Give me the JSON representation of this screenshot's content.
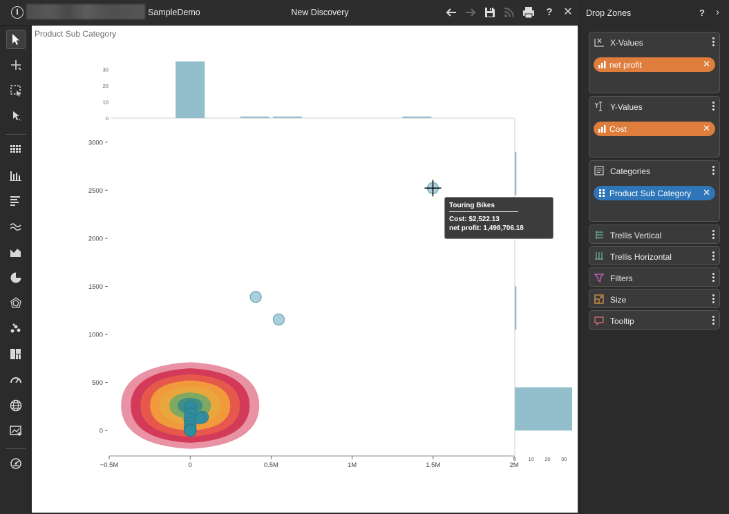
{
  "window": {
    "app_name": "SampleDemo",
    "doc_title": "New Discovery",
    "toolbar_icons": [
      "back-arrow-icon",
      "forward-arrow-icon",
      "save-icon",
      "rss-icon",
      "print-icon",
      "help-icon",
      "close-icon"
    ],
    "help_glyph": "?",
    "close_glyph": "✕"
  },
  "left_toolbar": {
    "tools": [
      "pointer-icon",
      "crosshair-icon",
      "rectangle-select-icon",
      "lasso-select-icon"
    ],
    "chart_types": [
      "grid-table-icon",
      "column-chart-icon",
      "bar-chart-icon",
      "line-chart-icon",
      "area-chart-icon",
      "pie-chart-icon",
      "radar-chart-icon",
      "scatter-chart-icon",
      "treemap-icon",
      "gauge-icon",
      "map-globe-icon",
      "custom-visual-icon"
    ],
    "bottom": [
      "chart-settings-icon"
    ]
  },
  "chart": {
    "title": "Product Sub Category",
    "tooltip": {
      "title": "Touring Bikes",
      "line1": "Cost: $2,522.13",
      "line2": "net profit: 1,498,706.18"
    }
  },
  "chart_data": {
    "type": "scatter",
    "title": "Product Sub Category",
    "xlabel": "",
    "ylabel": "",
    "x_ticks": [
      "−0.5M",
      "0",
      "0.5M",
      "1M",
      "1.5M",
      "2M"
    ],
    "y_ticks": [
      "0",
      "500",
      "1000",
      "1500",
      "2000",
      "2500",
      "3000"
    ],
    "xlim": [
      -500000,
      2000000
    ],
    "ylim": [
      -250,
      3250
    ],
    "points": [
      {
        "x": 1498706.18,
        "y": 2522.13,
        "label": "Touring Bikes",
        "highlight": true
      },
      {
        "x": 405000,
        "y": 1390
      },
      {
        "x": 547000,
        "y": 1155
      },
      {
        "x": 76000,
        "y": 140
      },
      {
        "x": 58000,
        "y": 130
      },
      {
        "x": 1000,
        "y": 240
      },
      {
        "x": 2000,
        "y": 175
      },
      {
        "x": -2000,
        "y": 120
      },
      {
        "x": 1000,
        "y": 80
      },
      {
        "x": 0,
        "y": 40
      },
      {
        "x": -1000,
        "y": 10
      },
      {
        "x": 2000,
        "y": 0
      }
    ],
    "density_contour_colors": [
      "#e892a3",
      "#d33a5a",
      "#e6584b",
      "#f09a3c",
      "#e9a63d",
      "#7fa962",
      "#3f8f86"
    ],
    "marginal_x": {
      "y_ticks": [
        "0",
        "10",
        "20",
        "30"
      ],
      "bins": [
        {
          "x0": -90000,
          "x1": 90000,
          "count": 35
        },
        {
          "x0": 310000,
          "x1": 490000,
          "count": 1
        },
        {
          "x0": 510000,
          "x1": 690000,
          "count": 1
        },
        {
          "x0": 1310000,
          "x1": 1490000,
          "count": 1
        }
      ]
    },
    "marginal_y": {
      "x_ticks": [
        "0",
        "10",
        "20",
        "30"
      ],
      "bins": [
        {
          "y0": 2450,
          "y1": 2900,
          "count": 1
        },
        {
          "y0": 1050,
          "y1": 1500,
          "count": 1
        },
        {
          "y0": 0,
          "y1": 450,
          "count": 35
        }
      ]
    }
  },
  "drop_zones": {
    "title": "Drop Zones",
    "help_glyph": "?",
    "collapse_glyph": "›",
    "zones": [
      {
        "label": "X-Values",
        "icon": "x-axis-icon",
        "chip": {
          "label": "net profit",
          "color": "#de7d3c",
          "icon": "measure-icon"
        }
      },
      {
        "label": "Y-Values",
        "icon": "y-axis-icon",
        "chip": {
          "label": "Cost",
          "color": "#de7d3c",
          "icon": "measure-icon"
        }
      },
      {
        "label": "Categories",
        "icon": "categories-icon",
        "chip": {
          "label": "Product Sub Category",
          "color": "#2f76b8",
          "icon": "dimension-icon"
        }
      },
      {
        "label": "Trellis Vertical",
        "icon": "trellis-vertical-icon"
      },
      {
        "label": "Trellis Horizontal",
        "icon": "trellis-horizontal-icon"
      },
      {
        "label": "Filters",
        "icon": "filter-icon"
      },
      {
        "label": "Size",
        "icon": "size-icon"
      },
      {
        "label": "Tooltip",
        "icon": "tooltip-icon"
      }
    ],
    "remove_glyph": "✕"
  }
}
